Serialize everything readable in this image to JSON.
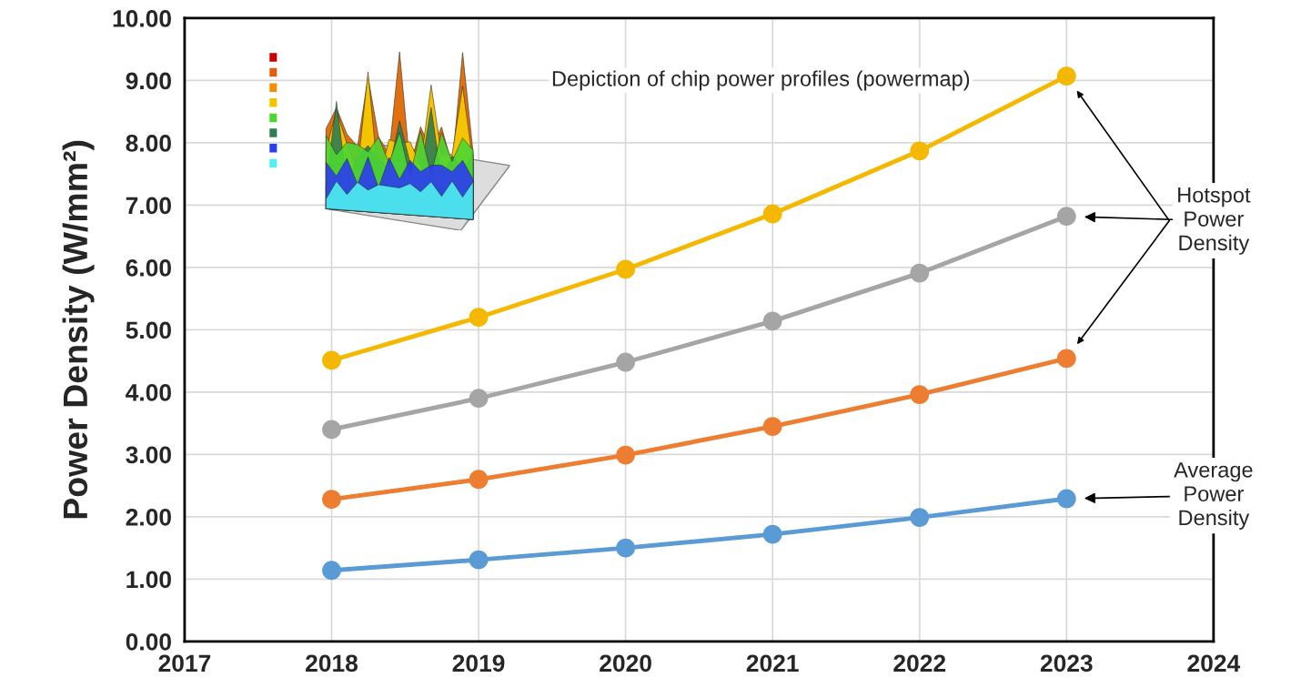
{
  "chart_data": {
    "type": "line",
    "x": [
      2018,
      2019,
      2020,
      2021,
      2022,
      2023
    ],
    "series": [
      {
        "color": "#f5b800",
        "values": [
          4.51,
          5.2,
          5.97,
          6.86,
          7.87,
          9.07
        ]
      },
      {
        "color": "#a5a5a5",
        "values": [
          3.4,
          3.9,
          4.48,
          5.14,
          5.91,
          6.82
        ]
      },
      {
        "color": "#ed7d31",
        "values": [
          2.28,
          2.6,
          2.99,
          3.45,
          3.96,
          4.54
        ]
      },
      {
        "color": "#5b9bd5",
        "values": [
          1.14,
          1.31,
          1.5,
          1.72,
          1.99,
          2.29
        ]
      }
    ],
    "ylabel": "Power Density (W/mm²)",
    "xlim": [
      2017,
      2024
    ],
    "xticks": [
      2017,
      2018,
      2019,
      2020,
      2021,
      2022,
      2023,
      2024
    ],
    "ylim": [
      0,
      10
    ],
    "yticks": [
      {
        "value": 0,
        "label": "0.00"
      },
      {
        "value": 1,
        "label": "1.00"
      },
      {
        "value": 2,
        "label": "2.00"
      },
      {
        "value": 3,
        "label": "3.00"
      },
      {
        "value": 4,
        "label": "4.00"
      },
      {
        "value": 5,
        "label": "5.00"
      },
      {
        "value": 6,
        "label": "6.00"
      },
      {
        "value": 7,
        "label": "7.00"
      },
      {
        "value": 8,
        "label": "8.00"
      },
      {
        "value": 9,
        "label": "9.00"
      },
      {
        "value": 10,
        "label": "10.00"
      }
    ],
    "annotations": [
      "Depiction of chip power profiles (powermap)",
      "Hotspot Power Density",
      "Average Power Density"
    ],
    "grid": true,
    "legend": false,
    "marker": "circle",
    "line_style": "solid"
  }
}
